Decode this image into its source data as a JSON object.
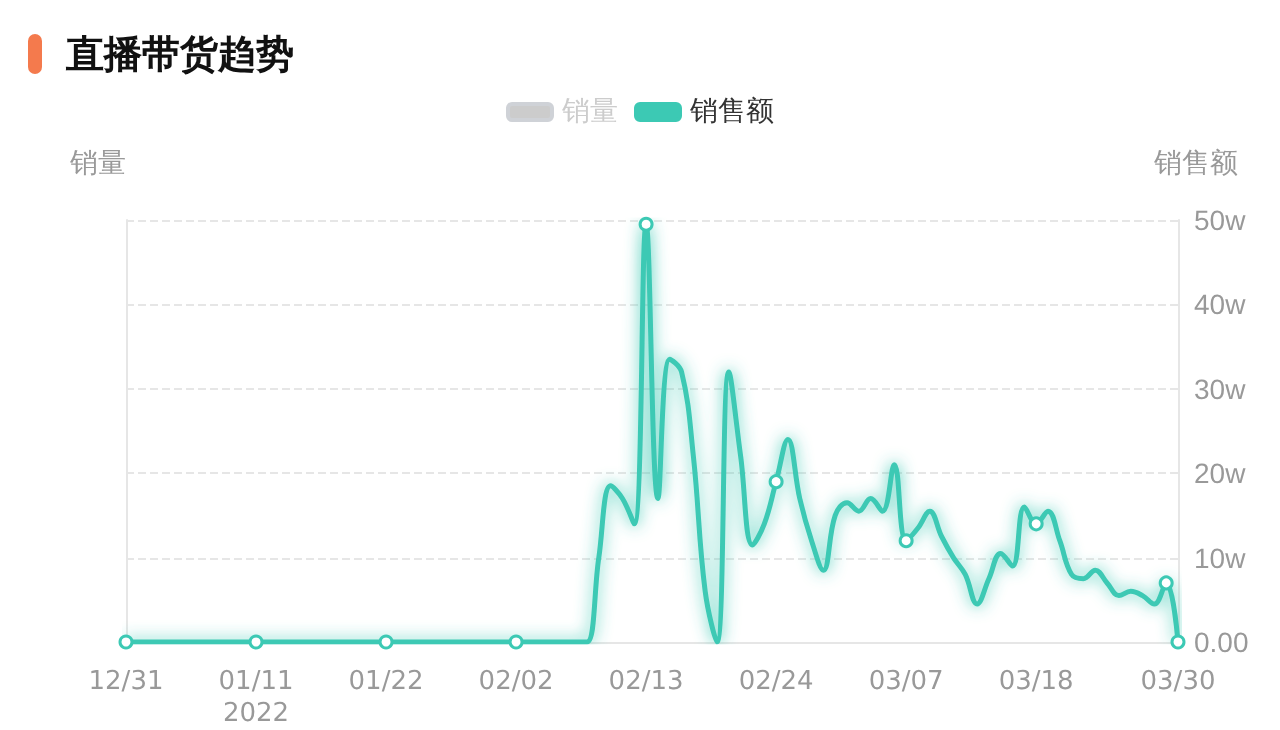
{
  "chart_data": {
    "type": "line",
    "title": "直播带货趋势",
    "ylabel": "销量",
    "y2label": "销售额",
    "categories": [
      "12/31",
      null,
      null,
      null,
      null,
      null,
      null,
      null,
      null,
      null,
      null,
      "01/11\n2022",
      null,
      null,
      null,
      null,
      null,
      null,
      null,
      null,
      null,
      null,
      "01/22",
      null,
      null,
      null,
      null,
      null,
      null,
      null,
      null,
      null,
      null,
      "02/02",
      null,
      null,
      null,
      null,
      null,
      null,
      null,
      null,
      null,
      null,
      "02/13",
      null,
      null,
      null,
      null,
      null,
      null,
      null,
      null,
      null,
      null,
      "02/24",
      null,
      null,
      null,
      null,
      null,
      null,
      null,
      null,
      null,
      null,
      "03/07",
      null,
      null,
      null,
      null,
      null,
      null,
      null,
      null,
      null,
      null,
      "03/18",
      null,
      null,
      null,
      null,
      null,
      null,
      null,
      null,
      null,
      null,
      null,
      "03/30"
    ],
    "series": [
      {
        "name": "销量",
        "color": "#cccccc",
        "values": [
          null,
          null,
          null,
          null,
          null,
          null,
          null,
          null,
          null,
          null,
          null,
          null,
          null,
          null,
          null,
          null,
          null,
          null,
          null,
          null,
          null,
          null,
          null,
          null,
          null,
          null,
          null,
          null,
          null,
          null,
          null,
          null,
          null,
          null,
          null,
          null,
          null,
          null,
          null,
          null,
          null,
          null,
          null,
          null,
          null,
          null,
          null,
          null,
          null,
          null,
          null,
          null,
          null,
          null,
          null,
          null,
          null,
          null,
          null,
          null,
          null,
          null,
          null,
          null,
          null,
          null,
          null,
          null,
          null,
          null,
          null,
          null,
          null,
          null,
          null,
          null,
          null,
          null,
          null,
          null,
          null,
          null,
          null,
          null,
          null,
          null,
          null,
          null,
          null,
          null
        ]
      },
      {
        "name": "销售额",
        "color": "#3cc9b4",
        "axis": "y2",
        "values": [
          0,
          0,
          0,
          0,
          0,
          0,
          0,
          0,
          0,
          0,
          0,
          0,
          0,
          0,
          0,
          0,
          0,
          0,
          0,
          0,
          0,
          0,
          0,
          0,
          0,
          0,
          0,
          0,
          0,
          0,
          0,
          0,
          0,
          0,
          0,
          0,
          0,
          0,
          0,
          0,
          10,
          18.5,
          17,
          14,
          49.5,
          17,
          33.5,
          32,
          22,
          6,
          0,
          32,
          22,
          11.5,
          14,
          19,
          24,
          17,
          12,
          8.5,
          15,
          16.5,
          15.5,
          17,
          15.5,
          21,
          12,
          13.5,
          15.5,
          12.5,
          10,
          8,
          4.5,
          7.5,
          10.5,
          9,
          16,
          14,
          15.5,
          12,
          8,
          7.5,
          8.5,
          7,
          5.5,
          6,
          5.5,
          4.5,
          7,
          0
        ]
      }
    ],
    "y2lim": [
      0,
      50
    ],
    "y2ticks": [
      {
        "value": 0,
        "label": "0.00"
      },
      {
        "value": 10,
        "label": "10w"
      },
      {
        "value": 20,
        "label": "20w"
      },
      {
        "value": 30,
        "label": "30w"
      },
      {
        "value": 40,
        "label": "40w"
      },
      {
        "value": 50,
        "label": "50w"
      }
    ],
    "grid": "y",
    "legend": "top",
    "line_style": "solid"
  }
}
